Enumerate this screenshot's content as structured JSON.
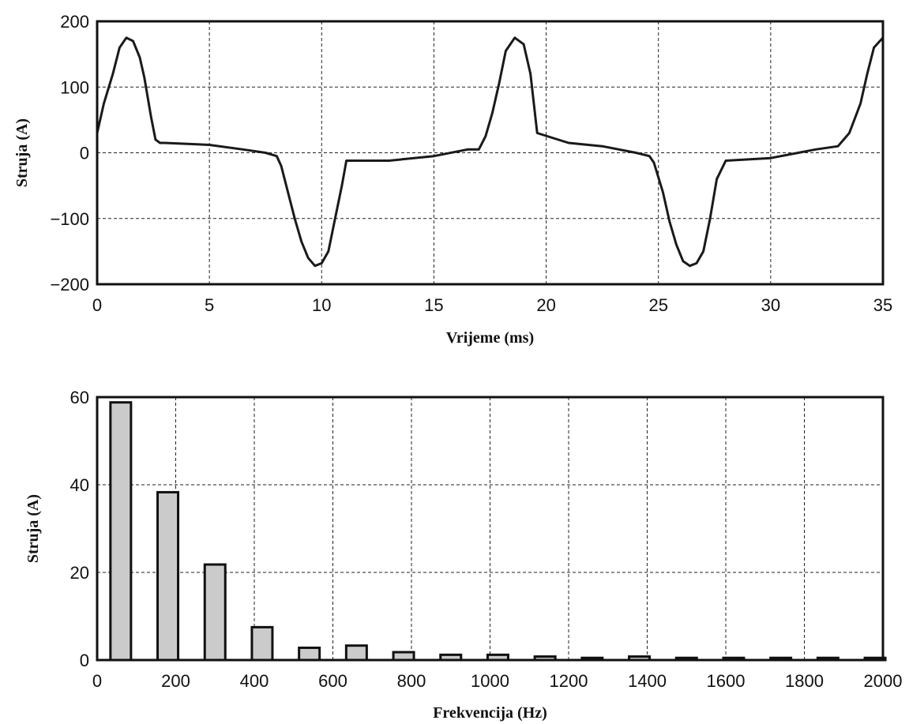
{
  "chart_data": [
    {
      "type": "line",
      "xlabel": "Vrijeme (ms)",
      "ylabel": "Struja (A)",
      "xlim": [
        0,
        35
      ],
      "ylim": [
        -200,
        200
      ],
      "xticks": [
        "0",
        "5",
        "10",
        "15",
        "20",
        "25",
        "30",
        "35"
      ],
      "yticks": [
        "200",
        "100",
        "0",
        "−100",
        "−200"
      ],
      "grid": true,
      "series": [
        {
          "x": [
            0,
            0.3,
            0.7,
            1.0,
            1.3,
            1.6,
            1.9,
            2.1,
            2.4,
            2.6,
            2.8,
            3.0,
            5.0,
            6.5,
            7.5,
            8.0,
            8.2,
            8.5,
            8.8,
            9.1,
            9.4,
            9.7,
            10.0,
            10.3,
            10.6,
            10.9,
            11.1,
            11.4,
            13.0,
            15.0,
            16.5,
            17.0,
            17.3,
            17.6,
            17.9,
            18.2,
            18.6,
            19.0,
            19.3,
            19.6,
            21.0,
            22.5,
            24.0,
            24.6,
            24.8,
            25.2,
            25.5,
            25.8,
            26.1,
            26.4,
            26.7,
            27.0,
            27.3,
            27.6,
            28.0,
            30.0,
            32.0,
            33.0,
            33.5,
            34.0,
            34.3,
            34.6,
            35.0
          ],
          "y": [
            30,
            75,
            120,
            160,
            175,
            170,
            145,
            115,
            55,
            20,
            15,
            15,
            12,
            5,
            0,
            -5,
            -20,
            -60,
            -100,
            -135,
            -160,
            -172,
            -168,
            -150,
            -100,
            -50,
            -12,
            -12,
            -12,
            -5,
            5,
            5,
            25,
            60,
            105,
            155,
            175,
            165,
            120,
            30,
            15,
            10,
            0,
            -5,
            -15,
            -60,
            -105,
            -140,
            -165,
            -172,
            -168,
            -150,
            -100,
            -40,
            -12,
            -8,
            5,
            10,
            30,
            75,
            120,
            160,
            175
          ]
        }
      ]
    },
    {
      "type": "bar",
      "xlabel": "Frekvencija (Hz)",
      "ylabel": "Struja (A)",
      "xlim": [
        0,
        2000
      ],
      "ylim": [
        0,
        60
      ],
      "xticks": [
        "0",
        "200",
        "400",
        "600",
        "800",
        "1000",
        "1200",
        "1400",
        "1600",
        "1800",
        "2000"
      ],
      "yticks": [
        "60",
        "40",
        "20",
        "0"
      ],
      "grid": true,
      "categories": [
        60,
        180,
        300,
        420,
        540,
        660,
        780,
        900,
        1020,
        1140,
        1260,
        1380,
        1500,
        1620,
        1740,
        1860,
        1980
      ],
      "values": [
        58.8,
        38.3,
        21.8,
        7.5,
        2.8,
        3.3,
        1.8,
        1.2,
        1.2,
        0.8,
        0.5,
        0.8,
        0.5,
        0.5,
        0.5,
        0.5,
        0.5
      ]
    }
  ]
}
